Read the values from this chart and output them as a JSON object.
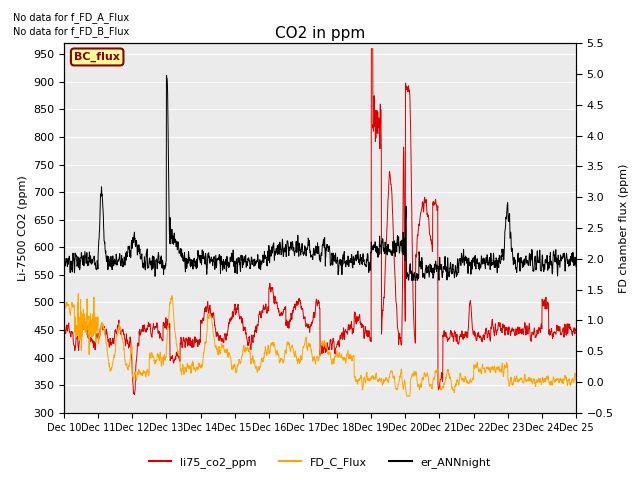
{
  "title": "CO2 in ppm",
  "ylabel_left": "Li-7500 CO2 (ppm)",
  "ylabel_right": "FD chamber flux (ppm)",
  "ylim_left": [
    300,
    970
  ],
  "ylim_right": [
    -0.5,
    5.5
  ],
  "yticks_left": [
    300,
    350,
    400,
    450,
    500,
    550,
    600,
    650,
    700,
    750,
    800,
    850,
    900,
    950
  ],
  "yticks_right": [
    -0.5,
    0.0,
    0.5,
    1.0,
    1.5,
    2.0,
    2.5,
    3.0,
    3.5,
    4.0,
    4.5,
    5.0,
    5.5
  ],
  "xtick_labels": [
    "Dec 10",
    "Dec 11",
    "Dec 12",
    "Dec 13",
    "Dec 14",
    "Dec 15",
    "Dec 16",
    "Dec 17",
    "Dec 18",
    "Dec 19",
    "Dec 20",
    "Dec 21",
    "Dec 22",
    "Dec 23",
    "Dec 24",
    "Dec 25"
  ],
  "color_red": "#dd0000",
  "color_orange": "#ffa500",
  "color_black": "#000000",
  "color_bg": "#ebebeb",
  "color_grid": "#ffffff",
  "note1": "No data for f_FD_A_Flux",
  "note2": "No data for f_FD_B_Flux",
  "bc_flux_label": "BC_flux",
  "legend_labels": [
    "li75_co2_ppm",
    "FD_C_Flux",
    "er_ANNnight"
  ],
  "linewidth": 0.7
}
